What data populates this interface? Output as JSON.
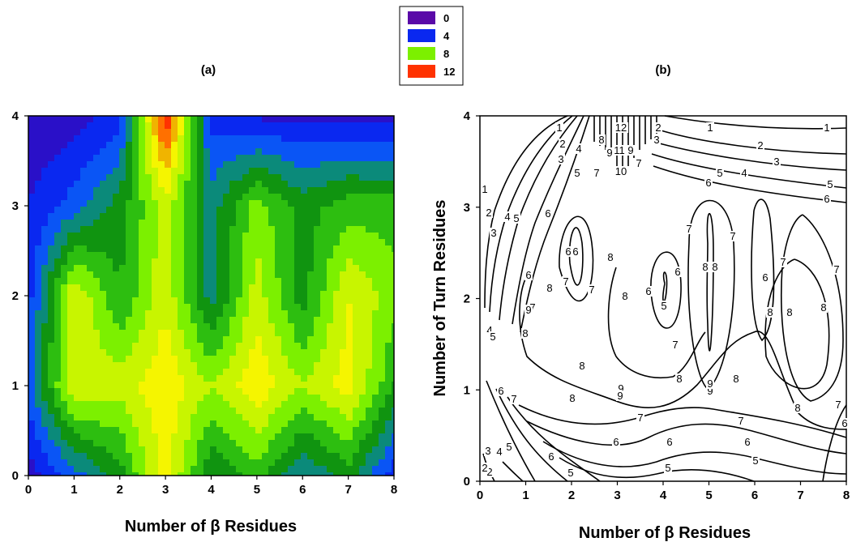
{
  "chart_data": [
    {
      "type": "heatmap",
      "subtype": "filled-contour",
      "title": "(a)",
      "xlabel": "Number of β Residues",
      "ylabel": "",
      "xlim": [
        0,
        8
      ],
      "ylim": [
        0,
        4
      ],
      "x_ticks": [
        "0",
        "1",
        "2",
        "3",
        "4",
        "5",
        "6",
        "7",
        "8"
      ],
      "y_ticks": [
        "0",
        "1",
        "2",
        "3",
        "4"
      ],
      "x": [
        0,
        1,
        2,
        3,
        4,
        5,
        6,
        7,
        8
      ],
      "y": [
        0,
        1,
        2,
        3,
        4
      ],
      "z": [
        [
          1,
          3,
          5,
          9,
          4.5,
          6,
          3.5,
          5,
          2
        ],
        [
          3,
          8.5,
          8,
          9.3,
          7.5,
          9.3,
          7.5,
          9,
          5.5
        ],
        [
          2,
          8.5,
          5.5,
          8.3,
          4,
          8,
          5,
          8.5,
          7
        ],
        [
          1.5,
          3,
          5,
          8,
          4,
          7,
          5,
          6,
          6
        ],
        [
          0.5,
          1,
          2,
          12.5,
          2,
          1.3,
          1.3,
          1.3,
          1
        ]
      ],
      "colorbar": {
        "levels": [
          "0",
          "4",
          "8",
          "12"
        ],
        "colors": [
          "#5a0aa8",
          "#0a28f0",
          "#7cf000",
          "#ff3200"
        ]
      },
      "legend_position": "top-center"
    },
    {
      "type": "heatmap",
      "subtype": "line-contour",
      "title": "(b)",
      "xlabel": "Number of β Residues",
      "ylabel": "Number of Turn Residues",
      "xlim": [
        0,
        8
      ],
      "ylim": [
        0,
        4
      ],
      "x_ticks": [
        "0",
        "1",
        "2",
        "3",
        "4",
        "5",
        "6",
        "7",
        "8"
      ],
      "y_ticks": [
        "0",
        "1",
        "2",
        "3",
        "4"
      ],
      "contour_levels": [
        "1",
        "2",
        "3",
        "4",
        "5",
        "6",
        "7",
        "8",
        "9",
        "10",
        "11",
        "12"
      ],
      "contour_labels_shown": [
        "1",
        "2",
        "3",
        "4",
        "5",
        "6",
        "7",
        "8",
        "9",
        "10",
        "11",
        "12"
      ]
    }
  ],
  "legend": {
    "entries": [
      {
        "label": "0",
        "color": "#5a0aa8"
      },
      {
        "label": "4",
        "color": "#0a28f0"
      },
      {
        "label": "8",
        "color": "#7cf000"
      },
      {
        "label": "12",
        "color": "#ff3200"
      }
    ]
  }
}
